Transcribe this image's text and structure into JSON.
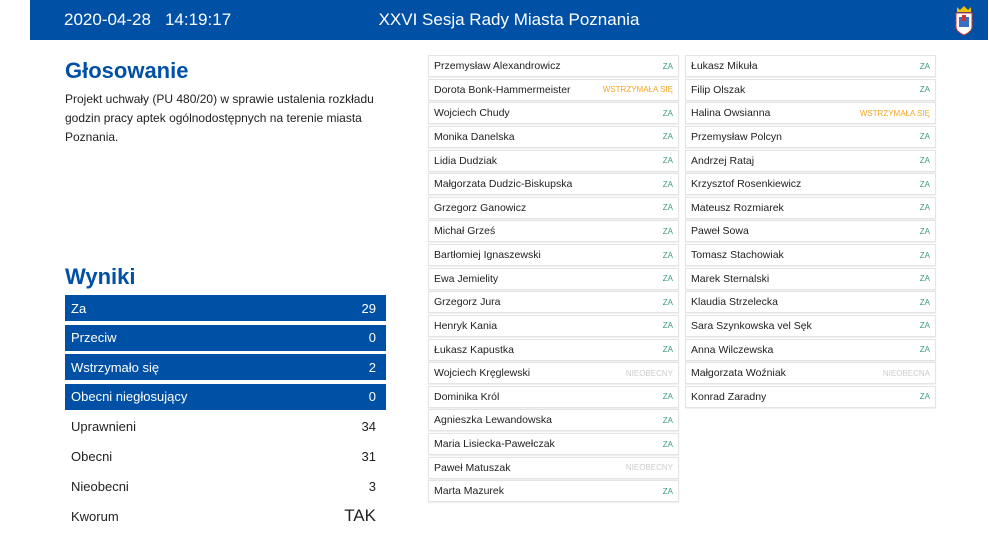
{
  "header": {
    "date": "2020-04-28",
    "time": "14:19:17",
    "title": "XXVI Sesja Rady Miasta Poznania"
  },
  "voting": {
    "heading": "Głosowanie",
    "description": "Projekt uchwały (PU 480/20) w sprawie ustalenia rozkładu godzin pracy aptek ogólnodostępnych na terenie miasta Poznania."
  },
  "results": {
    "heading": "Wyniki",
    "highlighted": [
      {
        "label": "Za",
        "value": "29"
      },
      {
        "label": "Przeciw",
        "value": "0"
      },
      {
        "label": "Wstrzymało się",
        "value": "2"
      },
      {
        "label": "Obecni niegłosujący",
        "value": "0"
      }
    ],
    "plain": [
      {
        "label": "Uprawnieni",
        "value": "34"
      },
      {
        "label": "Obecni",
        "value": "31"
      },
      {
        "label": "Nieobecni",
        "value": "3"
      },
      {
        "label": "Kworum",
        "value": "TAK"
      }
    ]
  },
  "status_colors": {
    "ZA": "#3aa07a",
    "WSTRZYMAŁA SIĘ": "#f5a623",
    "NIEOBECNY": "#cccccc"
  },
  "votes_left": [
    {
      "name": "Przemysław Alexandrowicz",
      "vote": "ZA"
    },
    {
      "name": "Dorota Bonk-Hammermeister",
      "vote": "WSTRZYMAŁA SIĘ"
    },
    {
      "name": "Wojciech Chudy",
      "vote": "ZA"
    },
    {
      "name": "Monika Danelska",
      "vote": "ZA"
    },
    {
      "name": "Lidia Dudziak",
      "vote": "ZA"
    },
    {
      "name": "Małgorzata Dudzic-Biskupska",
      "vote": "ZA"
    },
    {
      "name": "Grzegorz Ganowicz",
      "vote": "ZA"
    },
    {
      "name": "Michał Grześ",
      "vote": "ZA"
    },
    {
      "name": "Bartłomiej Ignaszewski",
      "vote": "ZA"
    },
    {
      "name": "Ewa Jemielity",
      "vote": "ZA"
    },
    {
      "name": "Grzegorz Jura",
      "vote": "ZA"
    },
    {
      "name": "Henryk Kania",
      "vote": "ZA"
    },
    {
      "name": "Łukasz Kapustka",
      "vote": "ZA"
    },
    {
      "name": "Wojciech Kręglewski",
      "vote": "NIEOBECNY"
    },
    {
      "name": "Dominika Król",
      "vote": "ZA"
    },
    {
      "name": "Agnieszka Lewandowska",
      "vote": "ZA"
    },
    {
      "name": "Maria Lisiecka-Pawełczak",
      "vote": "ZA"
    },
    {
      "name": "Paweł Matuszak",
      "vote": "NIEOBECNY"
    },
    {
      "name": "Marta Mazurek",
      "vote": "ZA"
    }
  ],
  "votes_right": [
    {
      "name": "Łukasz Mikuła",
      "vote": "ZA"
    },
    {
      "name": "Filip Olszak",
      "vote": "ZA"
    },
    {
      "name": "Halina Owsianna",
      "vote": "WSTRZYMAŁA SIĘ"
    },
    {
      "name": "Przemysław Polcyn",
      "vote": "ZA"
    },
    {
      "name": "Andrzej Rataj",
      "vote": "ZA"
    },
    {
      "name": "Krzysztof Rosenkiewicz",
      "vote": "ZA"
    },
    {
      "name": "Mateusz Rozmiarek",
      "vote": "ZA"
    },
    {
      "name": "Paweł Sowa",
      "vote": "ZA"
    },
    {
      "name": "Tomasz Stachowiak",
      "vote": "ZA"
    },
    {
      "name": "Marek Sternalski",
      "vote": "ZA"
    },
    {
      "name": "Klaudia Strzelecka",
      "vote": "ZA"
    },
    {
      "name": "Sara Szynkowska vel Sęk",
      "vote": "ZA"
    },
    {
      "name": "Anna Wilczewska",
      "vote": "ZA"
    },
    {
      "name": "Małgorzata Woźniak",
      "vote": "NIEOBECNA"
    },
    {
      "name": "Konrad Zaradny",
      "vote": "ZA"
    }
  ]
}
